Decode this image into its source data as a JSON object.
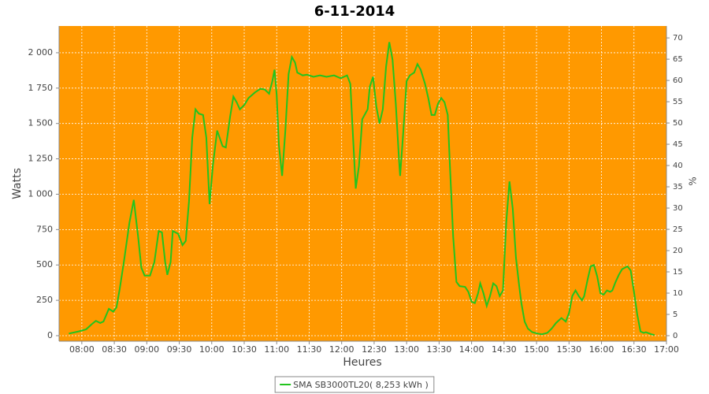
{
  "chart_data": {
    "type": "line",
    "title": "6-11-2014",
    "x_label": "Heures",
    "y_label": "Watts",
    "y2_label": "%",
    "xlim": [
      459,
      1020
    ],
    "xticks": [
      {
        "value": 480,
        "label": "08:00"
      },
      {
        "value": 510,
        "label": "08:30"
      },
      {
        "value": 540,
        "label": "09:00"
      },
      {
        "value": 570,
        "label": "09:30"
      },
      {
        "value": 600,
        "label": "10:00"
      },
      {
        "value": 630,
        "label": "10:30"
      },
      {
        "value": 660,
        "label": "11:00"
      },
      {
        "value": 690,
        "label": "11:30"
      },
      {
        "value": 720,
        "label": "12:00"
      },
      {
        "value": 750,
        "label": "12:30"
      },
      {
        "value": 780,
        "label": "13:00"
      },
      {
        "value": 810,
        "label": "13:30"
      },
      {
        "value": 840,
        "label": "14:00"
      },
      {
        "value": 870,
        "label": "14:30"
      },
      {
        "value": 900,
        "label": "15:00"
      },
      {
        "value": 930,
        "label": "15:30"
      },
      {
        "value": 960,
        "label": "16:00"
      },
      {
        "value": 990,
        "label": "16:30"
      },
      {
        "value": 1020,
        "label": "17:00"
      }
    ],
    "ylim": [
      -39,
      2189
    ],
    "yticks": [
      0,
      250,
      500,
      750,
      {
        "value": 1000,
        "label": "1 000"
      },
      {
        "value": 1250,
        "label": "1 250"
      },
      {
        "value": 1500,
        "label": "1 500"
      },
      {
        "value": 1750,
        "label": "1 750"
      },
      {
        "value": 2000,
        "label": "2 000"
      }
    ],
    "y2lim": [
      -1.3,
      72.8
    ],
    "y2ticks": [
      0,
      5,
      10,
      15,
      20,
      25,
      30,
      35,
      40,
      45,
      50,
      55,
      60,
      65,
      70
    ],
    "grid": true,
    "plot_background": "#ff9900",
    "legend_position": "bottom",
    "series": [
      {
        "name": "SMA SB3000TL20( 8,253 kWh )",
        "color": "#22c41e",
        "x": [
          468,
          477,
          484,
          489,
          493,
          497,
          500,
          505,
          509,
          512,
          515,
          519,
          524,
          528,
          532,
          535,
          538,
          543,
          547,
          551,
          554,
          557,
          559,
          562,
          564,
          569,
          573,
          576,
          579,
          582,
          585,
          588,
          592,
          595,
          598,
          601,
          605,
          610,
          613,
          617,
          620,
          623,
          626,
          630,
          634,
          640,
          645,
          649,
          653,
          656,
          658,
          660,
          662,
          665,
          668,
          671,
          674,
          677,
          679,
          684,
          688,
          694,
          700,
          706,
          713,
          719,
          725,
          728,
          730,
          733,
          736,
          739,
          744,
          746,
          749,
          752,
          755,
          758,
          761,
          764,
          767,
          770,
          773,
          774,
          777,
          780,
          783,
          787,
          790,
          793,
          797,
          800,
          803,
          806,
          809,
          812,
          815,
          818,
          820,
          823,
          826,
          829,
          834,
          837,
          840,
          843,
          846,
          848,
          851,
          854,
          857,
          860,
          863,
          866,
          869,
          872,
          875,
          878,
          881,
          884,
          886,
          889,
          892,
          896,
          901,
          905,
          910,
          914,
          918,
          923,
          927,
          930,
          933,
          936,
          939,
          942,
          944,
          947,
          950,
          953,
          956,
          959,
          962,
          965,
          968,
          970,
          973,
          976,
          979,
          984,
          987,
          990,
          993,
          996,
          999,
          1001,
          1006,
          1009
        ],
        "values": [
          15,
          30,
          45,
          80,
          105,
          90,
          100,
          190,
          170,
          200,
          330,
          530,
          800,
          960,
          700,
          480,
          425,
          425,
          520,
          740,
          730,
          520,
          430,
          520,
          740,
          720,
          640,
          670,
          950,
          1400,
          1600,
          1570,
          1560,
          1400,
          930,
          1200,
          1450,
          1340,
          1330,
          1550,
          1690,
          1650,
          1600,
          1630,
          1680,
          1720,
          1745,
          1740,
          1710,
          1800,
          1880,
          1700,
          1350,
          1130,
          1450,
          1850,
          1970,
          1930,
          1860,
          1840,
          1845,
          1830,
          1840,
          1830,
          1840,
          1820,
          1840,
          1780,
          1480,
          1040,
          1200,
          1530,
          1600,
          1760,
          1830,
          1620,
          1500,
          1600,
          1900,
          2075,
          1950,
          1640,
          1240,
          1130,
          1450,
          1800,
          1840,
          1860,
          1920,
          1880,
          1780,
          1680,
          1560,
          1560,
          1640,
          1680,
          1650,
          1560,
          1200,
          700,
          380,
          350,
          345,
          310,
          240,
          230,
          300,
          370,
          300,
          210,
          280,
          370,
          350,
          280,
          320,
          800,
          1090,
          900,
          550,
          350,
          230,
          100,
          50,
          25,
          15,
          10,
          20,
          50,
          90,
          125,
          100,
          160,
          280,
          320,
          280,
          250,
          280,
          390,
          490,
          500,
          420,
          300,
          290,
          320,
          310,
          320,
          380,
          430,
          470,
          490,
          460,
          310,
          150,
          30,
          20,
          25,
          10,
          5
        ]
      }
    ]
  }
}
